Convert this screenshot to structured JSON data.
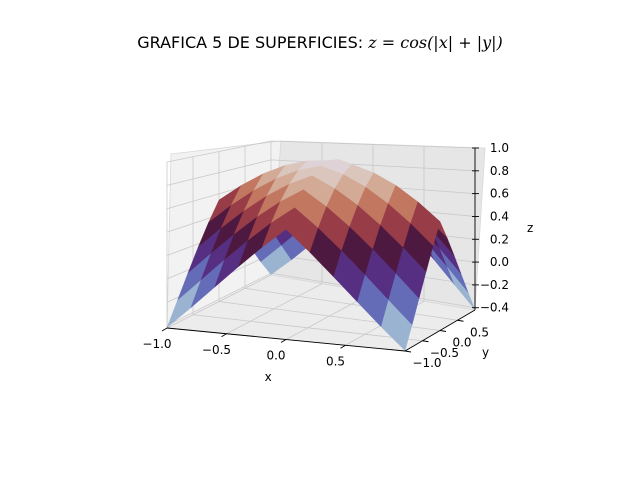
{
  "chart_data": {
    "type": "surface",
    "title_text": "GRAFICA 5 DE SUPERFICIES: ",
    "title_math": "z = cos(|x| + |y|)",
    "function": "cos(|x| + |y|)",
    "x": [
      -1.0,
      -0.8,
      -0.6,
      -0.4,
      -0.2,
      0.0,
      0.2,
      0.4,
      0.6,
      0.8,
      1.0
    ],
    "y": [
      -1.0,
      -0.8,
      -0.6,
      -0.4,
      -0.2,
      0.0,
      0.2,
      0.4,
      0.6,
      0.8,
      1.0
    ],
    "xlabel": "x",
    "ylabel": "y",
    "zlabel": "z",
    "xticks": [
      "−1.0",
      "−0.5",
      "0.0",
      "0.5"
    ],
    "yticks": [
      "−1.0",
      "−0.5",
      "0.0",
      "0.5"
    ],
    "zticks": [
      "−0.4",
      "−0.2",
      "0.0",
      "0.2",
      "0.4",
      "0.6",
      "0.8",
      "1.0"
    ],
    "xlim": [
      -1.0,
      1.0
    ],
    "ylim": [
      -1.0,
      1.0
    ],
    "zlim": [
      -0.42,
      1.0
    ],
    "colormap": "twilight",
    "grid": true
  }
}
